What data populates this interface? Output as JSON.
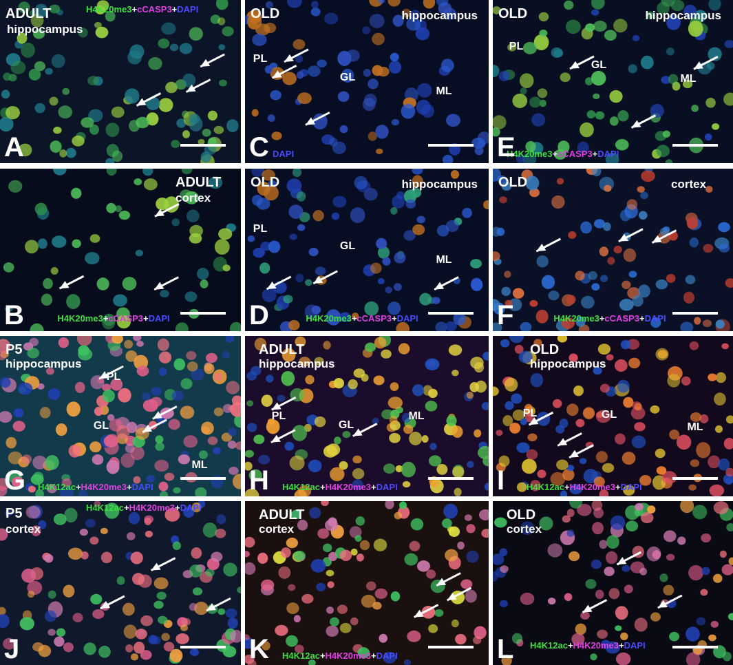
{
  "panels": [
    {
      "letter": "A",
      "title": [
        "ADULT",
        "hippocampus"
      ],
      "layers": [],
      "stain": [
        {
          "text": "H4K20me3",
          "color": "#3de03d"
        },
        {
          "text": "+",
          "color": "#ffffff"
        },
        {
          "text": "cCASP3",
          "color": "#e23ee2"
        },
        {
          "text": "+",
          "color": "#ffffff"
        },
        {
          "text": "DAPI",
          "color": "#4a4aff"
        }
      ]
    },
    {
      "letter": "C",
      "title": [
        "OLD",
        "hippocampus"
      ],
      "layers": [
        "PL",
        "GL",
        "ML"
      ],
      "stain": [
        {
          "text": "DAPI",
          "color": "#4a4aff"
        }
      ]
    },
    {
      "letter": "E",
      "title": [
        "OLD",
        "hippocampus"
      ],
      "layers": [
        "PL",
        "GL",
        "ML"
      ],
      "stain": [
        {
          "text": "H4K20me3",
          "color": "#3de03d"
        },
        {
          "text": "+",
          "color": "#ffffff"
        },
        {
          "text": "cCASP3",
          "color": "#e23ee2"
        },
        {
          "text": "+",
          "color": "#ffffff"
        },
        {
          "text": "DAPI",
          "color": "#4a4aff"
        }
      ]
    },
    {
      "letter": "B",
      "title": [
        "ADULT",
        "cortex"
      ],
      "layers": [],
      "stain": [
        {
          "text": "H4K20me3",
          "color": "#3de03d"
        },
        {
          "text": "+",
          "color": "#ffffff"
        },
        {
          "text": "cCASP3",
          "color": "#e23ee2"
        },
        {
          "text": "+",
          "color": "#ffffff"
        },
        {
          "text": "DAPI",
          "color": "#4a4aff"
        }
      ]
    },
    {
      "letter": "D",
      "title": [
        "OLD",
        "hippocampus"
      ],
      "layers": [
        "PL",
        "GL",
        "ML"
      ],
      "stain": [
        {
          "text": "H4K20me3",
          "color": "#3de03d"
        },
        {
          "text": "+",
          "color": "#ffffff"
        },
        {
          "text": "cCASP3",
          "color": "#e23ee2"
        },
        {
          "text": "+",
          "color": "#ffffff"
        },
        {
          "text": "DAPI",
          "color": "#4a4aff"
        }
      ]
    },
    {
      "letter": "F",
      "title": [
        "OLD",
        "cortex"
      ],
      "layers": [],
      "stain": [
        {
          "text": "H4K20me3",
          "color": "#3de03d"
        },
        {
          "text": "+",
          "color": "#ffffff"
        },
        {
          "text": "cCASP3",
          "color": "#e23ee2"
        },
        {
          "text": "+",
          "color": "#ffffff"
        },
        {
          "text": "DAPI",
          "color": "#4a4aff"
        }
      ]
    },
    {
      "letter": "G",
      "title": [
        "P5",
        "hippocampus"
      ],
      "layers": [
        "PL",
        "GL",
        "ML"
      ],
      "stain": [
        {
          "text": "H4K12ac",
          "color": "#3de03d"
        },
        {
          "text": "+",
          "color": "#ffffff"
        },
        {
          "text": "H4K20me3",
          "color": "#e23ee2"
        },
        {
          "text": "+",
          "color": "#ffffff"
        },
        {
          "text": "DAPI",
          "color": "#4a4aff"
        }
      ]
    },
    {
      "letter": "H",
      "title": [
        "ADULT",
        "hippocampus"
      ],
      "layers": [
        "PL",
        "GL",
        "ML"
      ],
      "stain": [
        {
          "text": "H4K12ac",
          "color": "#3de03d"
        },
        {
          "text": "+",
          "color": "#ffffff"
        },
        {
          "text": "H4K20me3",
          "color": "#e23ee2"
        },
        {
          "text": "+",
          "color": "#ffffff"
        },
        {
          "text": "DAPI",
          "color": "#4a4aff"
        }
      ]
    },
    {
      "letter": "I",
      "title": [
        "OLD",
        "hippocampus"
      ],
      "layers": [
        "PL",
        "GL",
        "ML"
      ],
      "stain": [
        {
          "text": "H4K12ac",
          "color": "#3de03d"
        },
        {
          "text": "+",
          "color": "#ffffff"
        },
        {
          "text": "H4K20me3",
          "color": "#e23ee2"
        },
        {
          "text": "+",
          "color": "#ffffff"
        },
        {
          "text": "DAPI",
          "color": "#4a4aff"
        }
      ]
    },
    {
      "letter": "J",
      "title": [
        "P5",
        "cortex"
      ],
      "layers": [],
      "stain": [
        {
          "text": "H4K12ac",
          "color": "#3de03d"
        },
        {
          "text": "+",
          "color": "#ffffff"
        },
        {
          "text": "H4K20me3",
          "color": "#e23ee2"
        },
        {
          "text": "+",
          "color": "#ffffff"
        },
        {
          "text": "DAPI",
          "color": "#4a4aff"
        }
      ]
    },
    {
      "letter": "K",
      "title": [
        "ADULT",
        "cortex"
      ],
      "layers": [],
      "stain": [
        {
          "text": "H4K12ac",
          "color": "#3de03d"
        },
        {
          "text": "+",
          "color": "#ffffff"
        },
        {
          "text": "H4K20me3",
          "color": "#e23ee2"
        },
        {
          "text": "+",
          "color": "#ffffff"
        },
        {
          "text": "DAPI",
          "color": "#4a4aff"
        }
      ]
    },
    {
      "letter": "L",
      "title": [
        "OLD",
        "cortex"
      ],
      "layers": [],
      "stain": [
        {
          "text": "H4K12ac",
          "color": "#3de03d"
        },
        {
          "text": "+",
          "color": "#ffffff"
        },
        {
          "text": "H4K20me3",
          "color": "#e23ee2"
        },
        {
          "text": "+",
          "color": "#ffffff"
        },
        {
          "text": "DAPI",
          "color": "#4a4aff"
        }
      ]
    }
  ]
}
